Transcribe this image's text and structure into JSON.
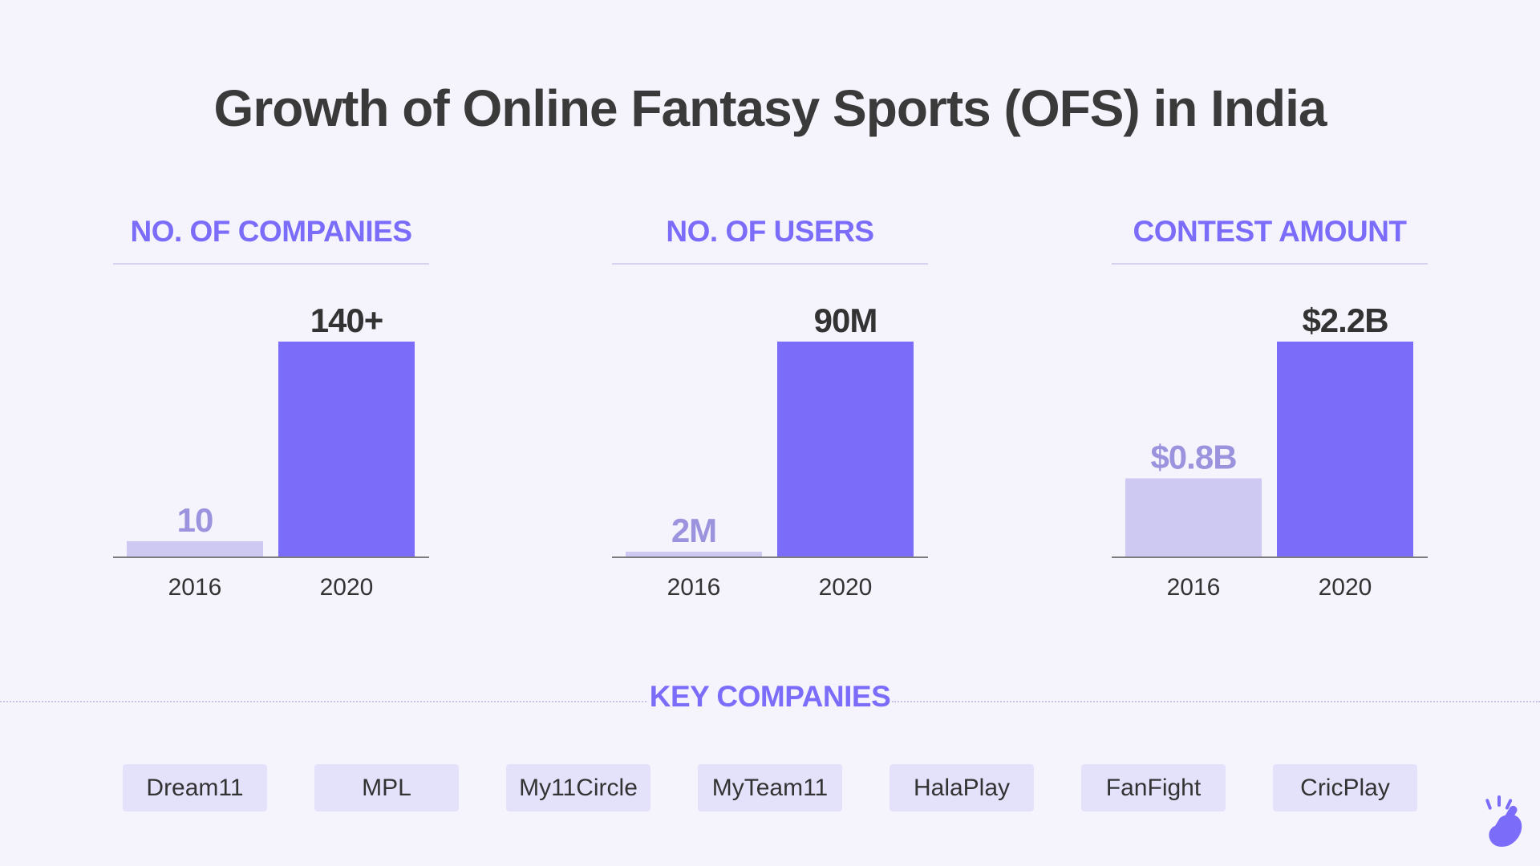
{
  "title": "Growth of Online Fantasy Sports (OFS) in India",
  "colors": {
    "accent": "#7b6dfa",
    "bar_2016": "#cdc9f2",
    "bar_2020": "#7b6dfa",
    "label_2016": "#9b93dd",
    "label_2020": "#333333"
  },
  "chart_data": [
    {
      "type": "bar",
      "title": "NO. OF COMPANIES",
      "categories": [
        "2016",
        "2020"
      ],
      "values": [
        10,
        140
      ],
      "value_labels": [
        "10",
        "140+"
      ],
      "ylim": [
        0,
        140
      ]
    },
    {
      "type": "bar",
      "title": "NO. OF USERS",
      "categories": [
        "2016",
        "2020"
      ],
      "values": [
        2,
        90
      ],
      "value_labels": [
        "2M",
        "90M"
      ],
      "ylim": [
        0,
        90
      ]
    },
    {
      "type": "bar",
      "title": "CONTEST AMOUNT",
      "categories": [
        "2016",
        "2020"
      ],
      "values": [
        0.8,
        2.2
      ],
      "value_labels": [
        "$0.8B",
        "$2.2B"
      ],
      "ylim": [
        0,
        2.2
      ]
    }
  ],
  "key_companies": {
    "heading": "KEY COMPANIES",
    "items": [
      "Dream11",
      "MPL",
      "My11Circle",
      "MyTeam11",
      "HalaPlay",
      "FanFight",
      "CricPlay"
    ]
  },
  "logo_icon": "snapping-hand-icon"
}
